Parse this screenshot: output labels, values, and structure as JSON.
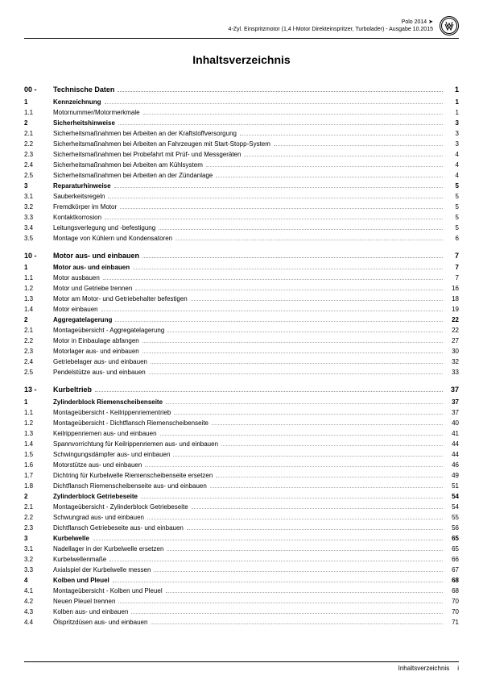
{
  "header": {
    "model": "Polo 2014 ➤",
    "subtitle": "4-Zyl. Einspritzmotor (1,4 l-Motor Direkteinspritzer, Turbolader) - Ausgabe 10.2015",
    "logo_text": "W"
  },
  "title": "Inhaltsverzeichnis",
  "sections": [
    {
      "num": "00 -",
      "label": "Technische Daten",
      "page": "1",
      "items": [
        {
          "num": "1",
          "label": "Kennzeichnung",
          "page": "1",
          "bold": true
        },
        {
          "num": "1.1",
          "label": "Motornummer/Motormerkmale",
          "page": "1"
        },
        {
          "num": "2",
          "label": "Sicherheitshinweise",
          "page": "3",
          "bold": true
        },
        {
          "num": "2.1",
          "label": "Sicherheitsmaßnahmen bei Arbeiten an der Kraftstoffversorgung",
          "page": "3"
        },
        {
          "num": "2.2",
          "label": "Sicherheitsmaßnahmen bei Arbeiten an Fahrzeugen mit Start-Stopp-System",
          "page": "3"
        },
        {
          "num": "2.3",
          "label": "Sicherheitsmaßnahmen bei Probefahrt mit Prüf- und Messgeräten",
          "page": "4"
        },
        {
          "num": "2.4",
          "label": "Sicherheitsmaßnahmen bei Arbeiten am Kühlsystem",
          "page": "4"
        },
        {
          "num": "2.5",
          "label": "Sicherheitsmaßnahmen bei Arbeiten an der Zündanlage",
          "page": "4"
        },
        {
          "num": "3",
          "label": "Reparaturhinweise",
          "page": "5",
          "bold": true
        },
        {
          "num": "3.1",
          "label": "Sauberkeitsregeln",
          "page": "5"
        },
        {
          "num": "3.2",
          "label": "Fremdkörper im Motor",
          "page": "5"
        },
        {
          "num": "3.3",
          "label": "Kontaktkorrosion",
          "page": "5"
        },
        {
          "num": "3.4",
          "label": "Leitungsverlegung und -befestigung",
          "page": "5"
        },
        {
          "num": "3.5",
          "label": "Montage von Kühlern und Kondensatoren",
          "page": "6"
        }
      ]
    },
    {
      "num": "10 -",
      "label": "Motor aus- und einbauen",
      "page": "7",
      "items": [
        {
          "num": "1",
          "label": "Motor aus- und einbauen",
          "page": "7",
          "bold": true
        },
        {
          "num": "1.1",
          "label": "Motor ausbauen",
          "page": "7"
        },
        {
          "num": "1.2",
          "label": "Motor und Getriebe trennen",
          "page": "16"
        },
        {
          "num": "1.3",
          "label": "Motor am Motor- und Getriebehalter befestigen",
          "page": "18"
        },
        {
          "num": "1.4",
          "label": "Motor einbauen",
          "page": "19"
        },
        {
          "num": "2",
          "label": "Aggregatelagerung",
          "page": "22",
          "bold": true
        },
        {
          "num": "2.1",
          "label": "Montageübersicht - Aggregatelagerung",
          "page": "22"
        },
        {
          "num": "2.2",
          "label": "Motor in Einbaulage abfangen",
          "page": "27"
        },
        {
          "num": "2.3",
          "label": "Motorlager aus- und einbauen",
          "page": "30"
        },
        {
          "num": "2.4",
          "label": "Getriebelager aus- und einbauen",
          "page": "32"
        },
        {
          "num": "2.5",
          "label": "Pendelstütze aus- und einbauen",
          "page": "33"
        }
      ]
    },
    {
      "num": "13 -",
      "label": "Kurbeltrieb",
      "page": "37",
      "items": [
        {
          "num": "1",
          "label": "Zylinderblock Riemenscheibenseite",
          "page": "37",
          "bold": true
        },
        {
          "num": "1.1",
          "label": "Montageübersicht - Keilrippenriementrieb",
          "page": "37"
        },
        {
          "num": "1.2",
          "label": "Montageübersicht - Dichtflansch Riemenscheibenseite",
          "page": "40"
        },
        {
          "num": "1.3",
          "label": "Keilrippenriemen aus- und einbauen",
          "page": "41"
        },
        {
          "num": "1.4",
          "label": "Spannvorrichtung für Keilrippenriemen aus- und einbauen",
          "page": "44"
        },
        {
          "num": "1.5",
          "label": "Schwingungsdämpfer aus- und einbauen",
          "page": "44"
        },
        {
          "num": "1.6",
          "label": "Motorstütze aus- und einbauen",
          "page": "46"
        },
        {
          "num": "1.7",
          "label": "Dichtring für Kurbelwelle Riemenscheibenseite ersetzen",
          "page": "49"
        },
        {
          "num": "1.8",
          "label": "Dichtflansch Riemenscheibenseite aus- und einbauen",
          "page": "51"
        },
        {
          "num": "2",
          "label": "Zylinderblock Getriebeseite",
          "page": "54",
          "bold": true
        },
        {
          "num": "2.1",
          "label": "Montageübersicht - Zylinderblock Getriebeseite",
          "page": "54"
        },
        {
          "num": "2.2",
          "label": "Schwungrad aus- und einbauen",
          "page": "55"
        },
        {
          "num": "2.3",
          "label": "Dichtflansch Getriebeseite aus- und einbauen",
          "page": "56"
        },
        {
          "num": "3",
          "label": "Kurbelwelle",
          "page": "65",
          "bold": true
        },
        {
          "num": "3.1",
          "label": "Nadellager in der Kurbelwelle ersetzen",
          "page": "65"
        },
        {
          "num": "3.2",
          "label": "Kurbelwellenmaße",
          "page": "66"
        },
        {
          "num": "3.3",
          "label": "Axialspiel der Kurbelwelle messen",
          "page": "67"
        },
        {
          "num": "4",
          "label": "Kolben und Pleuel",
          "page": "68",
          "bold": true
        },
        {
          "num": "4.1",
          "label": "Montageübersicht - Kolben und Pleuel",
          "page": "68"
        },
        {
          "num": "4.2",
          "label": "Neuen Pleuel trennen",
          "page": "70"
        },
        {
          "num": "4.3",
          "label": "Kolben aus- und einbauen",
          "page": "70"
        },
        {
          "num": "4.4",
          "label": "Ölspritzdüsen aus- und einbauen",
          "page": "71"
        }
      ]
    }
  ],
  "footer": {
    "label": "Inhaltsverzeichnis",
    "page": "i"
  }
}
